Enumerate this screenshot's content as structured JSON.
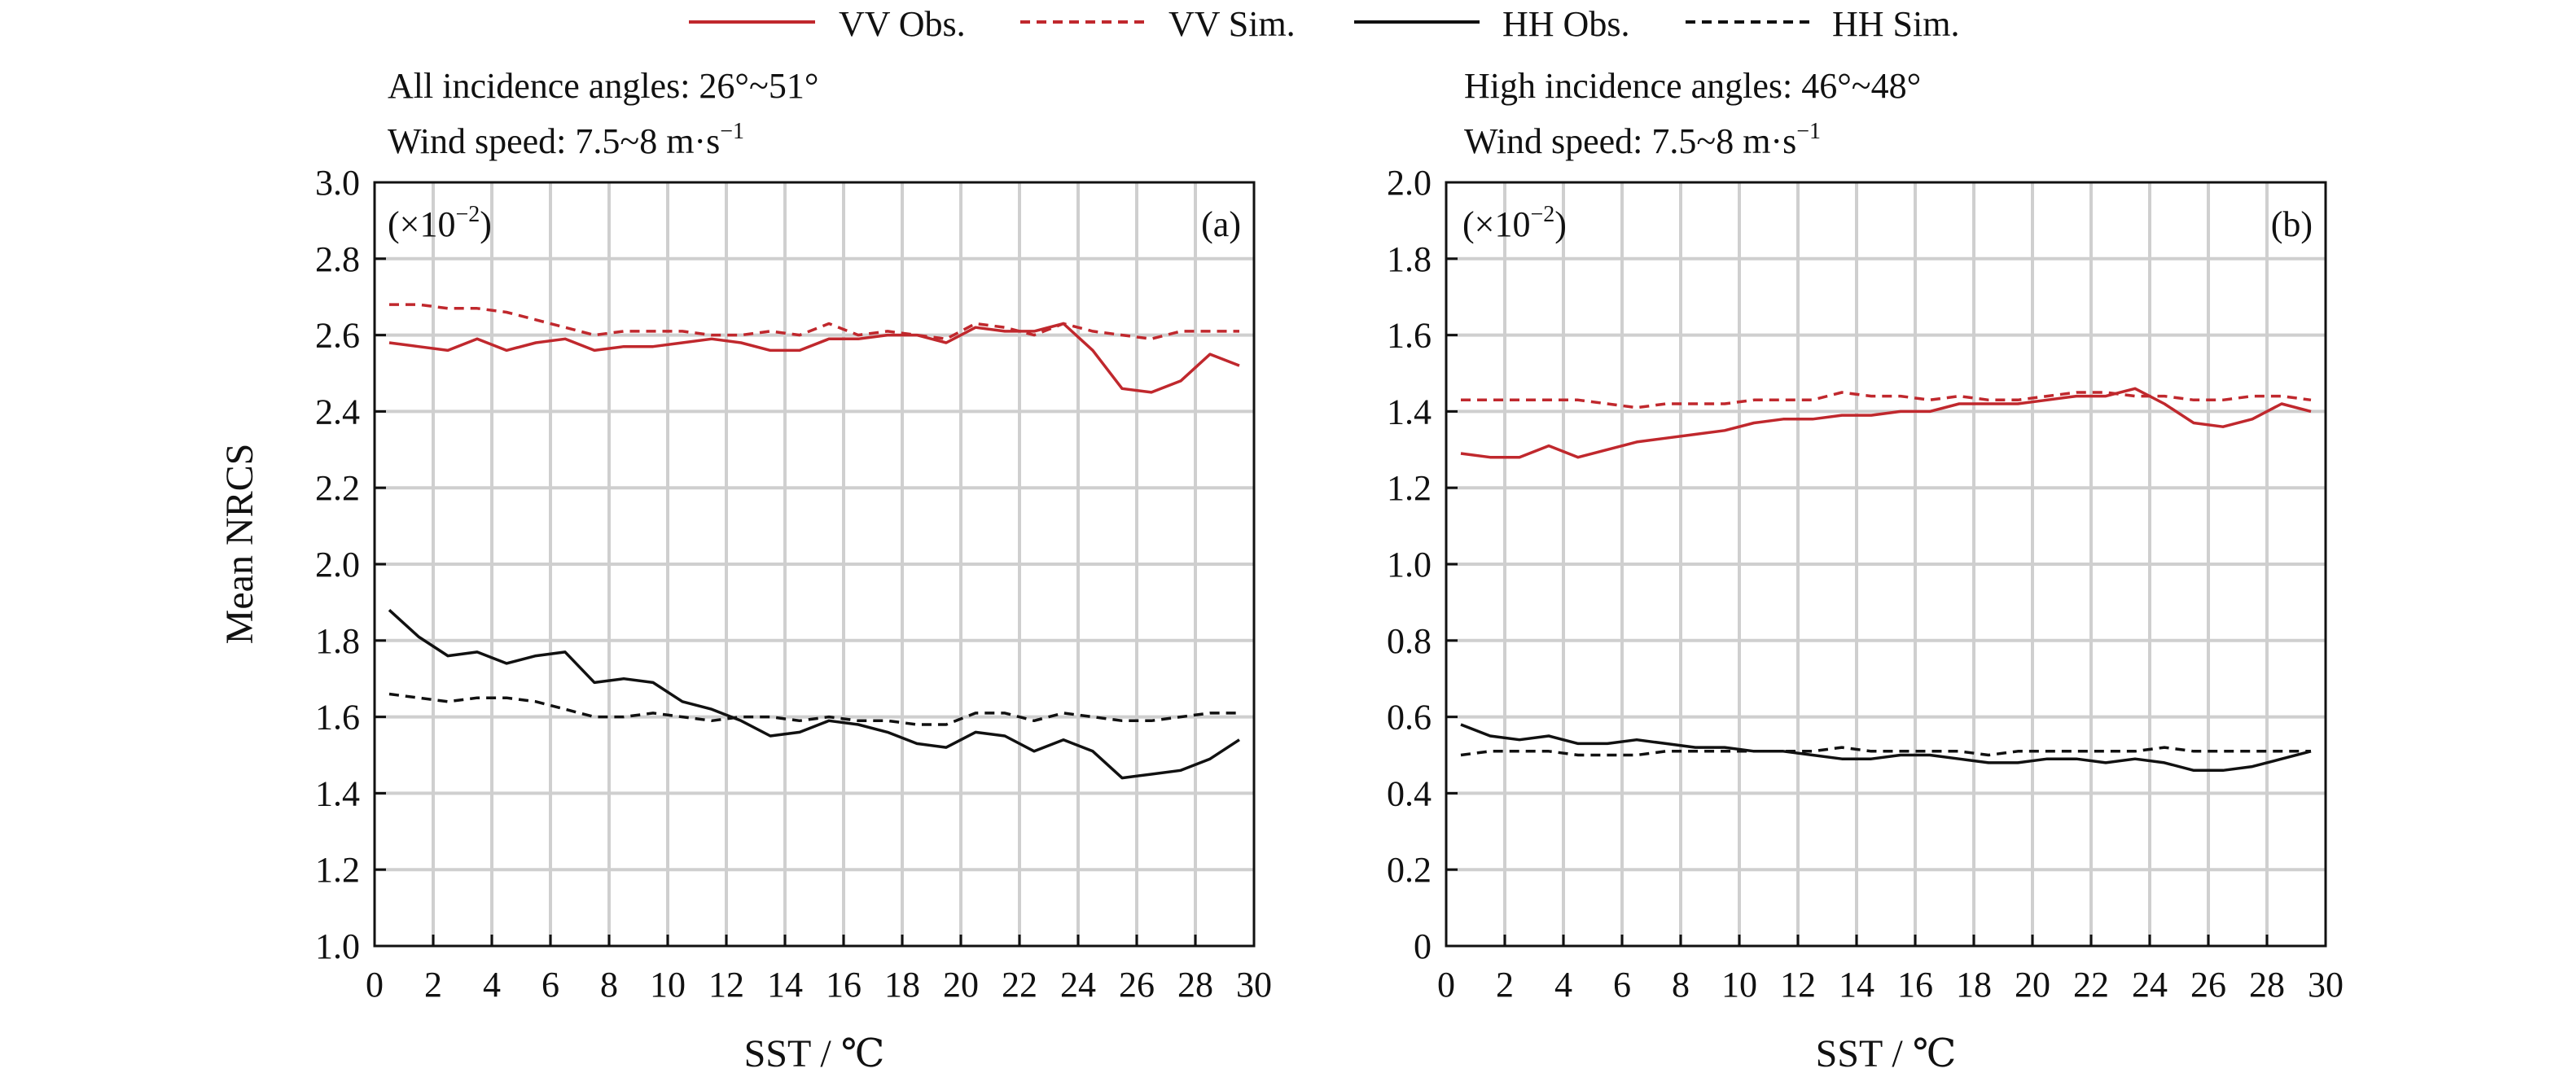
{
  "legend": [
    {
      "label": "VV Obs.",
      "color": "#c0282d",
      "dash": "solid"
    },
    {
      "label": "VV Sim.",
      "color": "#c0282d",
      "dash": "dashed"
    },
    {
      "label": "HH Obs.",
      "color": "#111111",
      "dash": "solid"
    },
    {
      "label": "HH Sim.",
      "color": "#111111",
      "dash": "dashed"
    }
  ],
  "shared": {
    "ylabel": "Mean NRCS",
    "xlabel": "SST / ℃",
    "scale_note": "(×10",
    "scale_exp": "−2",
    "scale_close": ")"
  },
  "colors": {
    "vv": "#c0282d",
    "hh": "#111111",
    "grid": "#cfcfcf"
  },
  "chart_data": [
    {
      "type": "line",
      "panel": "(a)",
      "caption_line1": "All incidence angles: 26°~51°",
      "caption_line2": "Wind speed: 7.5~8 m·s",
      "caption_exp": "−1",
      "xlabel": "SST / ℃",
      "ylabel": "Mean NRCS",
      "xlim": [
        0,
        30
      ],
      "ylim": [
        1.0,
        3.0
      ],
      "xticks": [
        "0",
        "2",
        "4",
        "6",
        "8",
        "10",
        "12",
        "14",
        "16",
        "18",
        "20",
        "22",
        "24",
        "26",
        "28",
        "30"
      ],
      "yticks": [
        "1.0",
        "1.2",
        "1.4",
        "1.6",
        "1.8",
        "2.0",
        "2.2",
        "2.4",
        "2.6",
        "2.8",
        "3.0"
      ],
      "grid": true,
      "x": [
        0.5,
        1.5,
        2.5,
        3.5,
        4.5,
        5.5,
        6.5,
        7.5,
        8.5,
        9.5,
        10.5,
        11.5,
        12.5,
        13.5,
        14.5,
        15.5,
        16.5,
        17.5,
        18.5,
        19.5,
        20.5,
        21.5,
        22.5,
        23.5,
        24.5,
        25.5,
        26.5,
        27.5,
        28.5,
        29.5
      ],
      "series": [
        {
          "name": "VV Obs.",
          "color": "#c0282d",
          "dash": "solid",
          "values": [
            2.58,
            2.57,
            2.56,
            2.59,
            2.56,
            2.58,
            2.59,
            2.56,
            2.57,
            2.57,
            2.58,
            2.59,
            2.58,
            2.56,
            2.56,
            2.59,
            2.59,
            2.6,
            2.6,
            2.58,
            2.62,
            2.61,
            2.61,
            2.63,
            2.56,
            2.46,
            2.45,
            2.48,
            2.55,
            2.52
          ]
        },
        {
          "name": "VV Sim.",
          "color": "#c0282d",
          "dash": "dashed",
          "values": [
            2.68,
            2.68,
            2.67,
            2.67,
            2.66,
            2.64,
            2.62,
            2.6,
            2.61,
            2.61,
            2.61,
            2.6,
            2.6,
            2.61,
            2.6,
            2.63,
            2.6,
            2.61,
            2.6,
            2.59,
            2.63,
            2.62,
            2.6,
            2.63,
            2.61,
            2.6,
            2.59,
            2.61,
            2.61,
            2.61
          ]
        },
        {
          "name": "HH Obs.",
          "color": "#111111",
          "dash": "solid",
          "values": [
            1.88,
            1.81,
            1.76,
            1.77,
            1.74,
            1.76,
            1.77,
            1.69,
            1.7,
            1.69,
            1.64,
            1.62,
            1.59,
            1.55,
            1.56,
            1.59,
            1.58,
            1.56,
            1.53,
            1.52,
            1.56,
            1.55,
            1.51,
            1.54,
            1.51,
            1.44,
            1.45,
            1.46,
            1.49,
            1.54
          ]
        },
        {
          "name": "HH Sim.",
          "color": "#111111",
          "dash": "dashed",
          "values": [
            1.66,
            1.65,
            1.64,
            1.65,
            1.65,
            1.64,
            1.62,
            1.6,
            1.6,
            1.61,
            1.6,
            1.59,
            1.6,
            1.6,
            1.59,
            1.6,
            1.59,
            1.59,
            1.58,
            1.58,
            1.61,
            1.61,
            1.59,
            1.61,
            1.6,
            1.59,
            1.59,
            1.6,
            1.61,
            1.61
          ]
        }
      ]
    },
    {
      "type": "line",
      "panel": "(b)",
      "caption_line1": "High incidence angles: 46°~48°",
      "caption_line2": "Wind speed: 7.5~8 m·s",
      "caption_exp": "−1",
      "xlabel": "SST / ℃",
      "xlim": [
        0,
        30
      ],
      "ylim": [
        0,
        2.0
      ],
      "xticks": [
        "0",
        "2",
        "4",
        "6",
        "8",
        "10",
        "12",
        "14",
        "16",
        "18",
        "20",
        "22",
        "24",
        "26",
        "28",
        "30"
      ],
      "yticks": [
        "0",
        "0.2",
        "0.4",
        "0.6",
        "0.8",
        "1.0",
        "1.2",
        "1.4",
        "1.6",
        "1.8",
        "2.0"
      ],
      "grid": true,
      "x": [
        0.5,
        1.5,
        2.5,
        3.5,
        4.5,
        5.5,
        6.5,
        7.5,
        8.5,
        9.5,
        10.5,
        11.5,
        12.5,
        13.5,
        14.5,
        15.5,
        16.5,
        17.5,
        18.5,
        19.5,
        20.5,
        21.5,
        22.5,
        23.5,
        24.5,
        25.5,
        26.5,
        27.5,
        28.5,
        29.5
      ],
      "series": [
        {
          "name": "VV Obs.",
          "color": "#c0282d",
          "dash": "solid",
          "values": [
            1.29,
            1.28,
            1.28,
            1.31,
            1.28,
            1.3,
            1.32,
            1.33,
            1.34,
            1.35,
            1.37,
            1.38,
            1.38,
            1.39,
            1.39,
            1.4,
            1.4,
            1.42,
            1.42,
            1.42,
            1.43,
            1.44,
            1.44,
            1.46,
            1.42,
            1.37,
            1.36,
            1.38,
            1.42,
            1.4
          ]
        },
        {
          "name": "VV Sim.",
          "color": "#c0282d",
          "dash": "dashed",
          "values": [
            1.43,
            1.43,
            1.43,
            1.43,
            1.43,
            1.42,
            1.41,
            1.42,
            1.42,
            1.42,
            1.43,
            1.43,
            1.43,
            1.45,
            1.44,
            1.44,
            1.43,
            1.44,
            1.43,
            1.43,
            1.44,
            1.45,
            1.45,
            1.44,
            1.44,
            1.43,
            1.43,
            1.44,
            1.44,
            1.43
          ]
        },
        {
          "name": "HH Obs.",
          "color": "#111111",
          "dash": "solid",
          "values": [
            0.58,
            0.55,
            0.54,
            0.55,
            0.53,
            0.53,
            0.54,
            0.53,
            0.52,
            0.52,
            0.51,
            0.51,
            0.5,
            0.49,
            0.49,
            0.5,
            0.5,
            0.49,
            0.48,
            0.48,
            0.49,
            0.49,
            0.48,
            0.49,
            0.48,
            0.46,
            0.46,
            0.47,
            0.49,
            0.51
          ]
        },
        {
          "name": "HH Sim.",
          "color": "#111111",
          "dash": "dashed",
          "values": [
            0.5,
            0.51,
            0.51,
            0.51,
            0.5,
            0.5,
            0.5,
            0.51,
            0.51,
            0.51,
            0.51,
            0.51,
            0.51,
            0.52,
            0.51,
            0.51,
            0.51,
            0.51,
            0.5,
            0.51,
            0.51,
            0.51,
            0.51,
            0.51,
            0.52,
            0.51,
            0.51,
            0.51,
            0.51,
            0.51
          ]
        }
      ]
    }
  ]
}
